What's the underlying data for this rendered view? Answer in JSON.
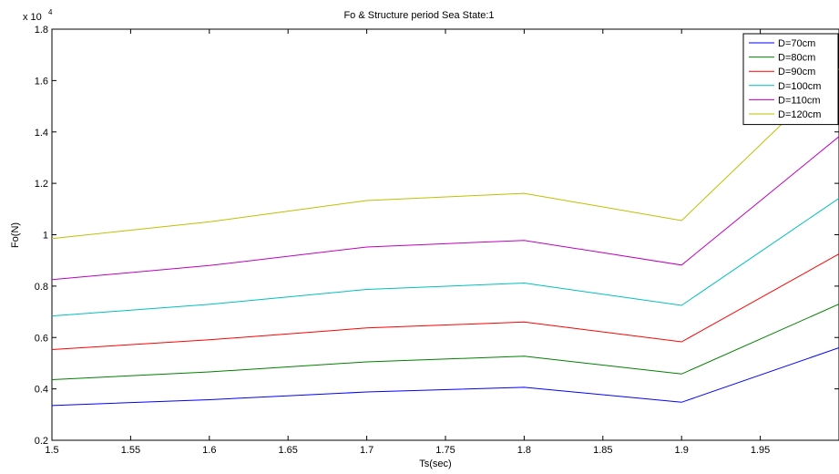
{
  "chart_data": {
    "type": "line",
    "title": "Fo & Structure period Sea State:1",
    "xlabel": "Ts(sec)",
    "ylabel": "Fo(N)",
    "y_exponent_label": "x 10",
    "y_exponent_power": "4",
    "xlim": [
      1.5,
      2.0
    ],
    "ylim": [
      2000,
      18000
    ],
    "x_ticks": [
      1.5,
      1.55,
      1.6,
      1.65,
      1.7,
      1.75,
      1.8,
      1.85,
      1.9,
      1.95
    ],
    "x_tick_labels": [
      "1.5",
      "1.55",
      "1.6",
      "1.65",
      "1.7",
      "1.75",
      "1.8",
      "1.85",
      "1.9",
      "1.95"
    ],
    "y_ticks": [
      2000,
      4000,
      6000,
      8000,
      10000,
      12000,
      14000,
      16000,
      18000
    ],
    "y_tick_labels": [
      "0.2",
      "0.4",
      "0.6",
      "0.8",
      "1",
      "1.2",
      "1.4",
      "1.6",
      "1.8"
    ],
    "grid": false,
    "legend_position": "top-right",
    "x": [
      1.5,
      1.6,
      1.7,
      1.8,
      1.9,
      2.0
    ],
    "series": [
      {
        "name": "D=70cm",
        "color": "#0000ff",
        "values": [
          3350,
          3580,
          3880,
          4060,
          3480,
          5600
        ]
      },
      {
        "name": "D=80cm",
        "color": "#008000",
        "values": [
          4360,
          4660,
          5050,
          5270,
          4580,
          7300
        ]
      },
      {
        "name": "D=90cm",
        "color": "#ff0000",
        "values": [
          5530,
          5910,
          6370,
          6600,
          5830,
          9250
        ]
      },
      {
        "name": "D=100cm",
        "color": "#00bfbf",
        "values": [
          6840,
          7290,
          7870,
          8120,
          7250,
          11420
        ]
      },
      {
        "name": "D=110cm",
        "color": "#bf00bf",
        "values": [
          8250,
          8800,
          9520,
          9780,
          8820,
          13820
        ]
      },
      {
        "name": "D=120cm",
        "color": "#bfbf00",
        "values": [
          9850,
          10500,
          11330,
          11610,
          10550,
          16450
        ]
      }
    ]
  }
}
